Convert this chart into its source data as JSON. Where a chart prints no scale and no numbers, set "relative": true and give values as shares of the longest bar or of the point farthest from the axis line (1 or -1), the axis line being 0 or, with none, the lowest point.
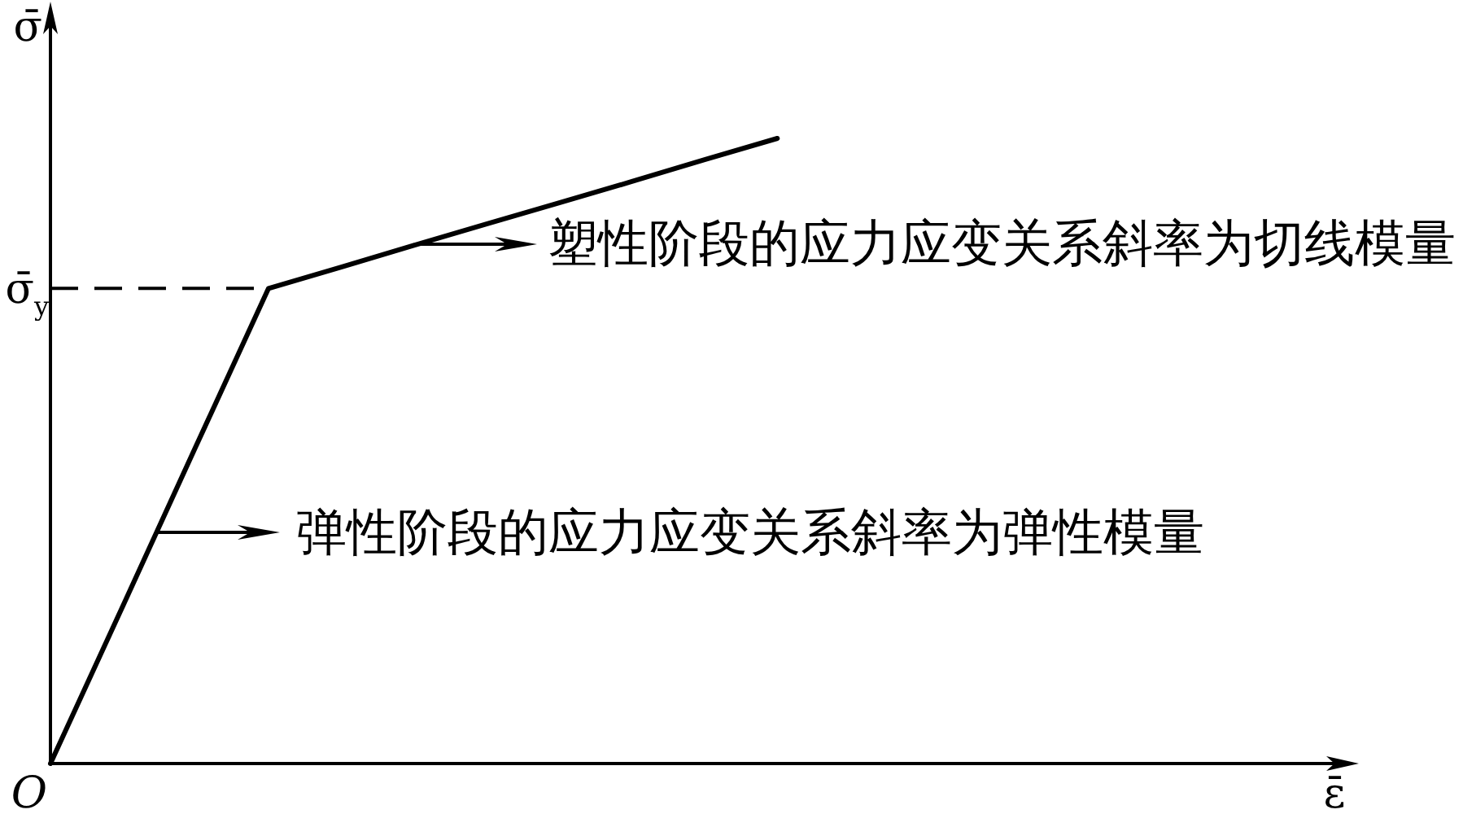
{
  "chart_data": {
    "type": "line",
    "xlabel": "ε̄",
    "ylabel": "σ̄",
    "relative": true,
    "marker": "none",
    "line_style": "solid",
    "categories": [
      null,
      null,
      null,
      null,
      null,
      null,
      null,
      null,
      null,
      null,
      null,
      null,
      null,
      null,
      null,
      null,
      null,
      null,
      null
    ],
    "series": [
      {
        "color": "#000000",
        "values": [
          0,
          0.253,
          0.507,
          0.76,
          0.794,
          0.829,
          0.863,
          0.897,
          0.931,
          0.966,
          1,
          null,
          null,
          null,
          null,
          null,
          null,
          null,
          null
        ]
      }
    ],
    "ref_lines": [
      {
        "axis": "y",
        "value": 0.76,
        "label": "σ̄$_{y}$",
        "line_style": "dashed",
        "color": "#000000"
      }
    ],
    "annotations": [
      "塑性阶段的应力应变关系斜率为切线模量",
      "弹性阶段的应力应变关系斜率为弹性模量",
      "O"
    ]
  }
}
